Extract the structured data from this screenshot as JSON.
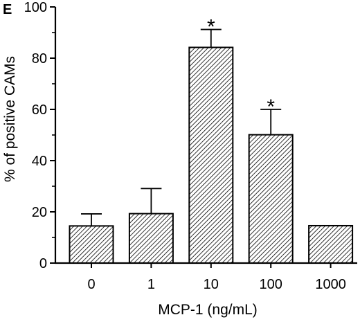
{
  "panel_label": "E",
  "chart_data": {
    "type": "bar",
    "categories": [
      "0",
      "1",
      "10",
      "100",
      "1000"
    ],
    "values": [
      14.5,
      19.3,
      84.2,
      50.1,
      14.6
    ],
    "error_upper": [
      19.2,
      29.1,
      91.2,
      60.0,
      null
    ],
    "significance": [
      "",
      "",
      "*",
      "*",
      ""
    ],
    "xlabel": "MCP-1 (ng/mL)",
    "ylabel": "% of positive CAMs",
    "ylim": [
      0,
      100
    ],
    "yticks": [
      0,
      20,
      40,
      60,
      80,
      100
    ],
    "bar_fill": "diagonal-hatch",
    "grid": false,
    "legend": "none",
    "colors": {
      "bar_edge": "#000000",
      "hatch": "#000000",
      "background": "#ffffff"
    }
  }
}
